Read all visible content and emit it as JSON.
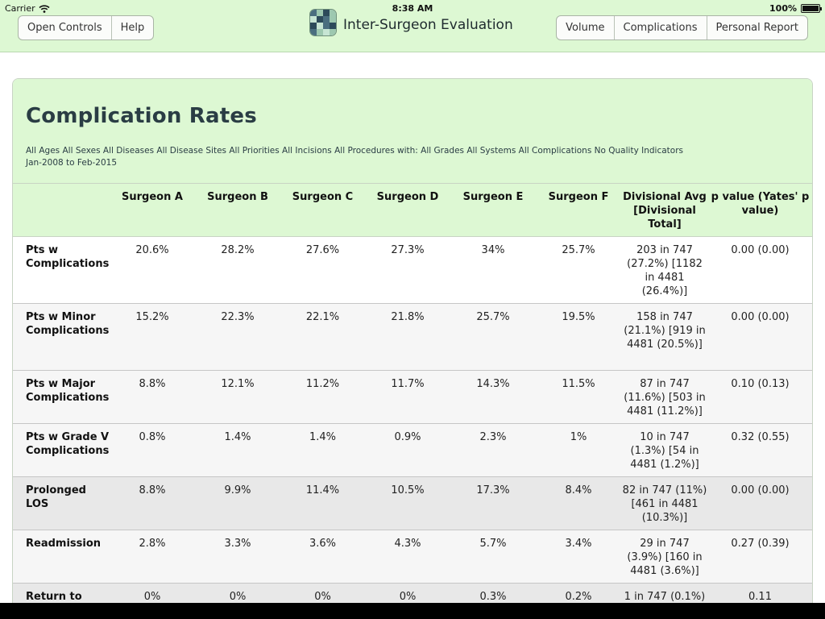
{
  "status_bar": {
    "carrier": "Carrier",
    "time": "8:38 AM",
    "battery": "100%",
    "battery_level": 1.0
  },
  "toolbar": {
    "left_buttons": [
      "Open Controls",
      "Help"
    ],
    "title": "Inter-Surgeon Evaluation",
    "right_buttons": [
      "Volume",
      "Complications",
      "Personal Report"
    ]
  },
  "report": {
    "title": "Complication Rates",
    "filter_line1": "All Ages All Sexes All Diseases All Disease Sites All Priorities All Incisions All Procedures with: All Grades All Systems All Complications No Quality Indicators",
    "filter_line2": "Jan-2008 to Feb-2015"
  },
  "table": {
    "columns": [
      "",
      "Surgeon A",
      "Surgeon B",
      "Surgeon C",
      "Surgeon D",
      "Surgeon E",
      "Surgeon F",
      "Divisional Avg [Divisional Total]",
      "p value (Yates' p value)"
    ],
    "rows": [
      {
        "label": "Pts w Complications",
        "values": [
          "20.6%",
          "28.2%",
          "27.6%",
          "27.3%",
          "34%",
          "25.7%"
        ],
        "divisional": "203 in 747 (27.2%) [1182 in 4481 (26.4%)]",
        "pvalue": "0.00 (0.00)"
      },
      {
        "label": "Pts w Minor Complications",
        "values": [
          "15.2%",
          "22.3%",
          "22.1%",
          "21.8%",
          "25.7%",
          "19.5%"
        ],
        "divisional": "158 in 747 (21.1%) [919 in 4481 (20.5%)]",
        "pvalue": "0.00 (0.00)"
      },
      {
        "label": "Pts w Major Complications",
        "values": [
          "8.8%",
          "12.1%",
          "11.2%",
          "11.7%",
          "14.3%",
          "11.5%"
        ],
        "divisional": "87 in 747 (11.6%) [503 in 4481 (11.2%)]",
        "pvalue": "0.10 (0.13)"
      },
      {
        "label": "Pts w Grade V Complications",
        "values": [
          "0.8%",
          "1.4%",
          "1.4%",
          "0.9%",
          "2.3%",
          "1%"
        ],
        "divisional": "10 in 747 (1.3%) [54 in 4481 (1.2%)]",
        "pvalue": "0.32 (0.55)"
      },
      {
        "label": "Prolonged LOS",
        "values": [
          "8.8%",
          "9.9%",
          "11.4%",
          "10.5%",
          "17.3%",
          "8.4%"
        ],
        "divisional": "82 in 747 (11%) [461 in 4481 (10.3%)]",
        "pvalue": "0.00 (0.00)"
      },
      {
        "label": "Readmission",
        "values": [
          "2.8%",
          "3.3%",
          "3.6%",
          "4.3%",
          "5.7%",
          "3.4%"
        ],
        "divisional": "29 in 747 (3.9%) [160 in 4481 (3.6%)]",
        "pvalue": "0.27 (0.39)"
      },
      {
        "label": "Return to",
        "values": [
          "0%",
          "0%",
          "0%",
          "0%",
          "0.3%",
          "0.2%"
        ],
        "divisional": "1 in 747 (0.1%)",
        "pvalue": "0.11"
      }
    ]
  }
}
